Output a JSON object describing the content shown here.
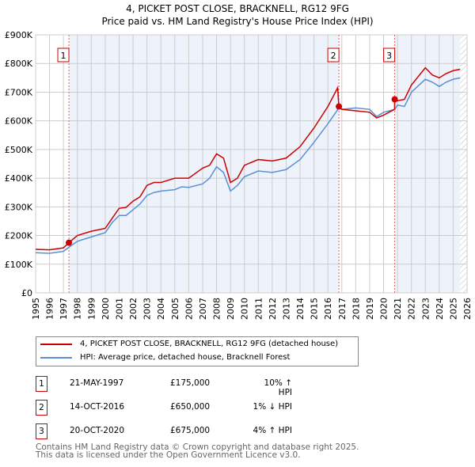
{
  "chart_data": {
    "type": "line",
    "title": "4, PICKET POST CLOSE, BRACKNELL, RG12 9FG",
    "subtitle": "Price paid vs. HM Land Registry's House Price Index (HPI)",
    "xlim": [
      1995,
      2026
    ],
    "ylim": [
      0,
      900000
    ],
    "x_ticks": [
      "1995",
      "1996",
      "1997",
      "1998",
      "1999",
      "2000",
      "2001",
      "2002",
      "2003",
      "2004",
      "2005",
      "2006",
      "2007",
      "2008",
      "2009",
      "2010",
      "2011",
      "2012",
      "2013",
      "2014",
      "2015",
      "2016",
      "2017",
      "2018",
      "2019",
      "2020",
      "2021",
      "2022",
      "2023",
      "2024",
      "2025",
      "2026"
    ],
    "y_ticks": [
      {
        "v": 0,
        "label": "£0"
      },
      {
        "v": 100000,
        "label": "£100K"
      },
      {
        "v": 200000,
        "label": "£200K"
      },
      {
        "v": 300000,
        "label": "£300K"
      },
      {
        "v": 400000,
        "label": "£400K"
      },
      {
        "v": 500000,
        "label": "£500K"
      },
      {
        "v": 600000,
        "label": "£600K"
      },
      {
        "v": 700000,
        "label": "£700K"
      },
      {
        "v": 800000,
        "label": "£800K"
      },
      {
        "v": 900000,
        "label": "£900K"
      }
    ],
    "grid": true,
    "series": [
      {
        "name": "4, PICKET POST CLOSE, BRACKNELL, RG12 9FG (detached house)",
        "color": "#cc0000",
        "x": [
          1995,
          1996,
          1997,
          1997.39,
          1998,
          1999,
          2000,
          2000.5,
          2001,
          2001.5,
          2002,
          2002.5,
          2003,
          2003.5,
          2004,
          2005,
          2006,
          2007,
          2007.5,
          2008,
          2008.5,
          2009,
          2009.5,
          2010,
          2011,
          2012,
          2013,
          2014,
          2015,
          2016,
          2016.7,
          2016.79,
          2017,
          2018,
          2019,
          2019.5,
          2020,
          2020.79,
          2020.8,
          2021,
          2021.5,
          2022,
          2023,
          2023.5,
          2024,
          2024.5,
          2025,
          2025.5
        ],
        "y": [
          152000,
          150000,
          157000,
          175000,
          200000,
          215000,
          225000,
          260000,
          295000,
          298000,
          320000,
          335000,
          375000,
          385000,
          385000,
          400000,
          400000,
          435000,
          445000,
          485000,
          470000,
          385000,
          400000,
          445000,
          465000,
          460000,
          470000,
          510000,
          575000,
          650000,
          715000,
          650000,
          640000,
          635000,
          630000,
          610000,
          620000,
          640000,
          675000,
          670000,
          675000,
          725000,
          785000,
          760000,
          750000,
          765000,
          775000,
          780000
        ]
      },
      {
        "name": "HPI: Average price, detached house, Bracknell Forest",
        "color": "#5b8fd4",
        "x": [
          1995,
          1996,
          1997,
          1997.39,
          1998,
          1999,
          2000,
          2000.5,
          2001,
          2001.5,
          2002,
          2002.5,
          2003,
          2003.5,
          2004,
          2005,
          2005.5,
          2006,
          2007,
          2007.5,
          2008,
          2008.5,
          2009,
          2009.5,
          2010,
          2011,
          2012,
          2013,
          2014,
          2015,
          2016,
          2016.79,
          2017,
          2018,
          2019,
          2019.5,
          2020,
          2020.8,
          2021,
          2021.5,
          2022,
          2023,
          2023.5,
          2024,
          2024.5,
          2025,
          2025.5
        ],
        "y": [
          140000,
          138000,
          145000,
          159000,
          180000,
          195000,
          210000,
          245000,
          270000,
          270000,
          290000,
          310000,
          340000,
          350000,
          355000,
          360000,
          370000,
          368000,
          380000,
          400000,
          440000,
          420000,
          355000,
          375000,
          405000,
          425000,
          420000,
          430000,
          465000,
          525000,
          590000,
          645000,
          640000,
          645000,
          640000,
          615000,
          630000,
          640000,
          655000,
          650000,
          700000,
          745000,
          735000,
          720000,
          735000,
          745000,
          750000
        ]
      }
    ],
    "sales": [
      {
        "n": "1",
        "x": 1997.39,
        "y": 175000,
        "date": "21-MAY-1997",
        "price": "£175,000",
        "hpi": "10% ↑ HPI"
      },
      {
        "n": "2",
        "x": 2016.79,
        "y": 650000,
        "date": "14-OCT-2016",
        "price": "£650,000",
        "hpi": "1% ↓ HPI"
      },
      {
        "n": "3",
        "x": 2020.8,
        "y": 675000,
        "date": "20-OCT-2020",
        "price": "£675,000",
        "hpi": "4% ↑ HPI"
      }
    ],
    "shaded_ranges": [
      [
        1997.39,
        2016.79
      ],
      [
        2020.8,
        2025.5
      ]
    ],
    "hatched_from": 2025.5,
    "legend_placement": "below"
  },
  "footer": [
    "Contains HM Land Registry data © Crown copyright and database right 2025.",
    "This data is licensed under the Open Government Licence v3.0."
  ]
}
